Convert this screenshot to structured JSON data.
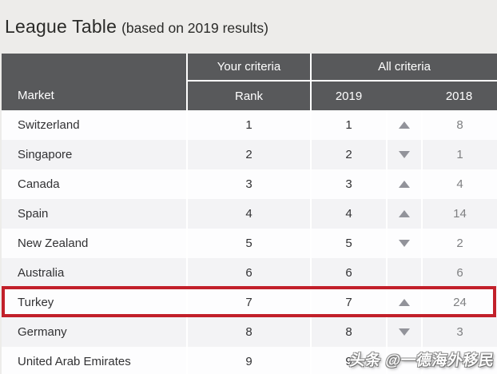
{
  "title": {
    "main": "League Table",
    "suffix": "(based on 2019 results)"
  },
  "table": {
    "header": {
      "market": "Market",
      "your_criteria": "Your criteria",
      "all_criteria": "All criteria",
      "rank": "Rank",
      "col_2019": "2019",
      "col_2018": "2018"
    },
    "rows": [
      {
        "market": "Switzerland",
        "rank": "1",
        "y2019": "1",
        "trend": "up",
        "y2018": "8",
        "highlighted": false
      },
      {
        "market": "Singapore",
        "rank": "2",
        "y2019": "2",
        "trend": "down",
        "y2018": "1",
        "highlighted": false
      },
      {
        "market": "Canada",
        "rank": "3",
        "y2019": "3",
        "trend": "up",
        "y2018": "4",
        "highlighted": false
      },
      {
        "market": "Spain",
        "rank": "4",
        "y2019": "4",
        "trend": "up",
        "y2018": "14",
        "highlighted": false
      },
      {
        "market": "New Zealand",
        "rank": "5",
        "y2019": "5",
        "trend": "down",
        "y2018": "2",
        "highlighted": false
      },
      {
        "market": "Australia",
        "rank": "6",
        "y2019": "6",
        "trend": "",
        "y2018": "6",
        "highlighted": false
      },
      {
        "market": "Turkey",
        "rank": "7",
        "y2019": "7",
        "trend": "up",
        "y2018": "24",
        "highlighted": true
      },
      {
        "market": "Germany",
        "rank": "8",
        "y2019": "8",
        "trend": "down",
        "y2018": "3",
        "highlighted": false
      },
      {
        "market": "United Arab Emirates",
        "rank": "9",
        "y2019": "9",
        "trend": "",
        "y2018": "",
        "highlighted": false
      }
    ]
  },
  "watermark": {
    "text": "头条 @一德海外移民"
  },
  "colors": {
    "header_bg": "#58595b",
    "row_bg": "#fdfdfe",
    "row_alt_bg": "#f3f3f5",
    "text_dark": "#323234",
    "text_gray": "#7f8082",
    "arrow_gray": "#92939a",
    "highlight_red": "#c2202a",
    "page_bg": "#edecea"
  },
  "chart_data": {
    "type": "table",
    "title": "League Table (based on 2019 results)",
    "columns": [
      "Market",
      "Your criteria - Rank",
      "All criteria - 2019",
      "Trend vs 2018",
      "All criteria - 2018"
    ],
    "rows": [
      [
        "Switzerland",
        1,
        1,
        "up",
        8
      ],
      [
        "Singapore",
        2,
        2,
        "down",
        1
      ],
      [
        "Canada",
        3,
        3,
        "up",
        4
      ],
      [
        "Spain",
        4,
        4,
        "up",
        14
      ],
      [
        "New Zealand",
        5,
        5,
        "down",
        2
      ],
      [
        "Australia",
        6,
        6,
        "none",
        6
      ],
      [
        "Turkey",
        7,
        7,
        "up",
        24
      ],
      [
        "Germany",
        8,
        8,
        "down",
        3
      ],
      [
        "United Arab Emirates",
        9,
        9,
        "",
        ""
      ]
    ],
    "annotations": [
      "Turkey row highlighted with red box"
    ]
  }
}
